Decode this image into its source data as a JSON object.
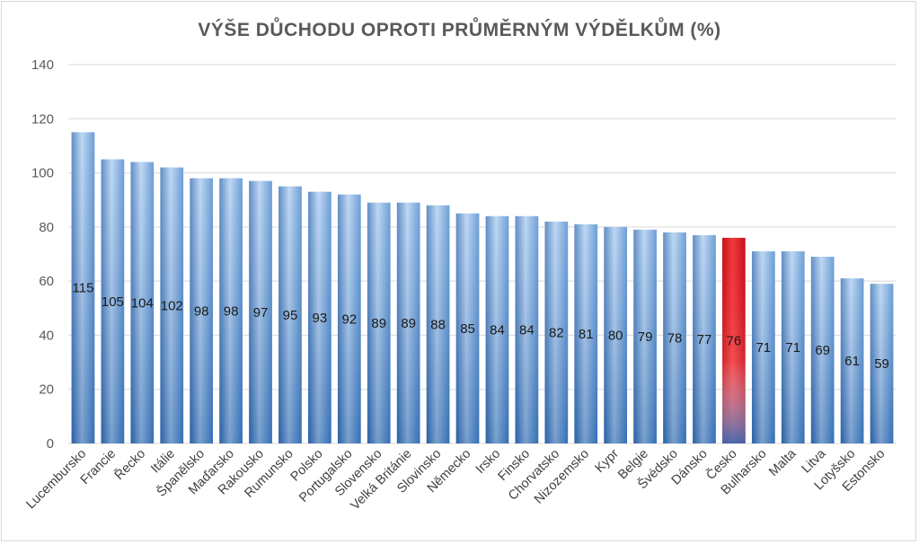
{
  "chart_data": {
    "type": "bar",
    "title": "VÝŠE DŮCHODU OPROTI PRŮMĚRNÝM VÝDĚLKŮM (%)",
    "xlabel": "",
    "ylabel": "",
    "ylim": [
      0,
      140
    ],
    "yticks": [
      0,
      20,
      40,
      60,
      80,
      100,
      120,
      140
    ],
    "grid": true,
    "categories": [
      "Lucembursko",
      "Francie",
      "Řecko",
      "Itálie",
      "Španělsko",
      "Maďarsko",
      "Rakousko",
      "Rumunsko",
      "Polsko",
      "Portugalsko",
      "Slovensko",
      "Velká Británie",
      "Slovinsko",
      "Německo",
      "Irsko",
      "Finsko",
      "Chorvatsko",
      "Nizozemsko",
      "Kypr",
      "Belgie",
      "Švédsko",
      "Dánsko",
      "Česko",
      "Bulharsko",
      "Malta",
      "Litva",
      "Lotyšsko",
      "Estonsko"
    ],
    "values": [
      115,
      105,
      104,
      102,
      98,
      98,
      97,
      95,
      93,
      92,
      89,
      89,
      88,
      85,
      84,
      84,
      82,
      81,
      80,
      79,
      78,
      77,
      76,
      71,
      71,
      69,
      61,
      59
    ],
    "highlight_category": "Česko",
    "colors": {
      "bar": "#5b9bd5",
      "highlight": "#e0161b",
      "grid": "#d9d9d9",
      "text": "#595959"
    }
  }
}
